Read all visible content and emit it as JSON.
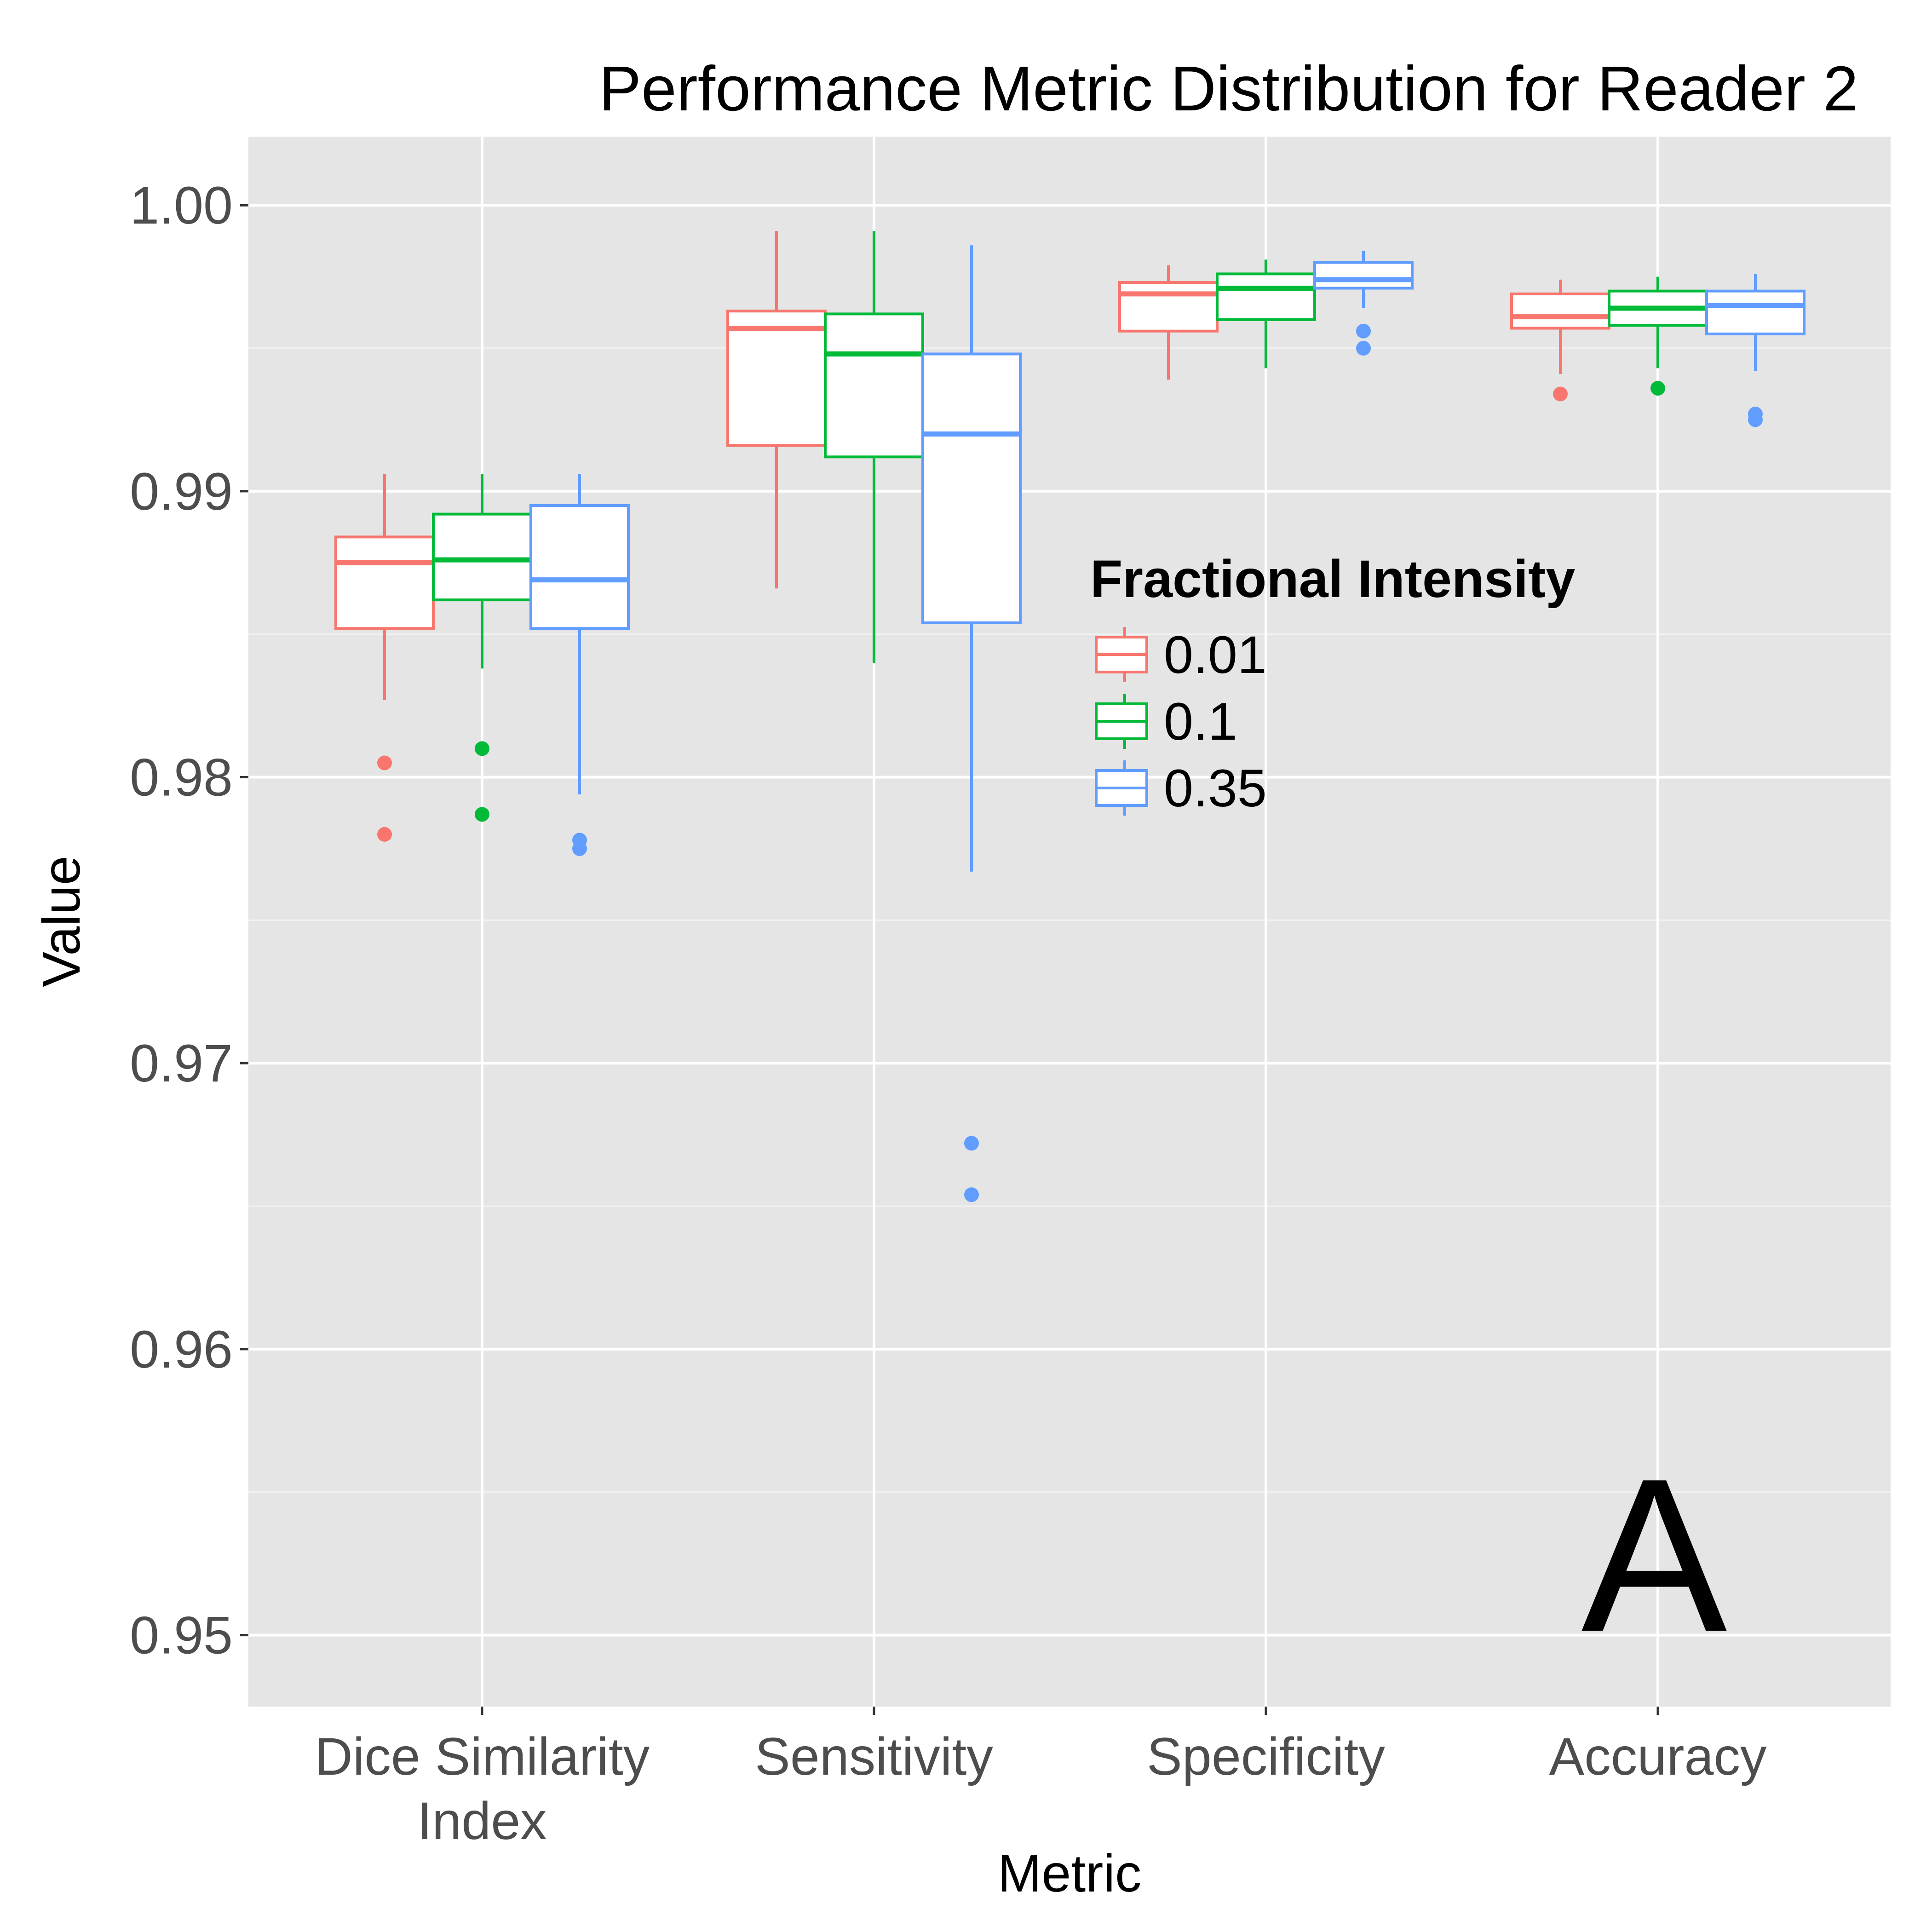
{
  "chart_data": {
    "type": "boxplot",
    "title": "Performance Metric Distribution for Reader 2",
    "xlabel": "Metric",
    "ylabel": "Value",
    "ylim": [
      0.9475,
      1.0024
    ],
    "y_ticks": [
      "0.95",
      "0.96",
      "0.97",
      "0.98",
      "0.99",
      "1.00"
    ],
    "y_tick_values": [
      0.95,
      0.96,
      0.97,
      0.98,
      0.99,
      1.0
    ],
    "grid": true,
    "categories": [
      {
        "lines": [
          "Dice Similarity",
          "Index"
        ]
      },
      {
        "lines": [
          "Sensitivity"
        ]
      },
      {
        "lines": [
          "Specificity"
        ]
      },
      {
        "lines": [
          "Accuracy"
        ]
      }
    ],
    "legend": {
      "title": "Fractional Intensity",
      "placement": "inside-right",
      "entries": [
        "0.01",
        "0.1",
        "0.35"
      ]
    },
    "panel_label": "A",
    "series": [
      {
        "name": "0.01",
        "color": "#F8766D",
        "boxes": [
          {
            "whisker_low": 0.9827,
            "q1": 0.9852,
            "median": 0.9875,
            "q3": 0.9884,
            "whisker_high": 0.9906,
            "outliers": [
              0.9805,
              0.978
            ]
          },
          {
            "whisker_low": 0.9866,
            "q1": 0.9916,
            "median": 0.9957,
            "q3": 0.9963,
            "whisker_high": 0.9991,
            "outliers": []
          },
          {
            "whisker_low": 0.9939,
            "q1": 0.9956,
            "median": 0.9969,
            "q3": 0.9973,
            "whisker_high": 0.9979,
            "outliers": []
          },
          {
            "whisker_low": 0.9941,
            "q1": 0.9957,
            "median": 0.9961,
            "q3": 0.9969,
            "whisker_high": 0.9974,
            "outliers": [
              0.9934
            ]
          }
        ]
      },
      {
        "name": "0.1",
        "color": "#00BA38",
        "boxes": [
          {
            "whisker_low": 0.9838,
            "q1": 0.9862,
            "median": 0.9876,
            "q3": 0.9892,
            "whisker_high": 0.9906,
            "outliers": [
              0.981,
              0.9787
            ]
          },
          {
            "whisker_low": 0.984,
            "q1": 0.9912,
            "median": 0.9948,
            "q3": 0.9962,
            "whisker_high": 0.9991,
            "outliers": []
          },
          {
            "whisker_low": 0.9943,
            "q1": 0.996,
            "median": 0.9971,
            "q3": 0.9976,
            "whisker_high": 0.9981,
            "outliers": []
          },
          {
            "whisker_low": 0.9943,
            "q1": 0.9958,
            "median": 0.9964,
            "q3": 0.997,
            "whisker_high": 0.9975,
            "outliers": [
              0.9936
            ]
          }
        ]
      },
      {
        "name": "0.35",
        "color": "#619CFF",
        "boxes": [
          {
            "whisker_low": 0.9794,
            "q1": 0.9852,
            "median": 0.9869,
            "q3": 0.9895,
            "whisker_high": 0.9906,
            "outliers": [
              0.9778,
              0.9775
            ]
          },
          {
            "whisker_low": 0.9767,
            "q1": 0.9854,
            "median": 0.992,
            "q3": 0.9948,
            "whisker_high": 0.9986,
            "outliers": [
              0.9672,
              0.9654
            ]
          },
          {
            "whisker_low": 0.9964,
            "q1": 0.9971,
            "median": 0.9974,
            "q3": 0.998,
            "whisker_high": 0.9984,
            "outliers": [
              0.9956,
              0.995
            ]
          },
          {
            "whisker_low": 0.9942,
            "q1": 0.9955,
            "median": 0.9965,
            "q3": 0.997,
            "whisker_high": 0.9976,
            "outliers": [
              0.9927,
              0.9925
            ]
          }
        ]
      }
    ]
  }
}
